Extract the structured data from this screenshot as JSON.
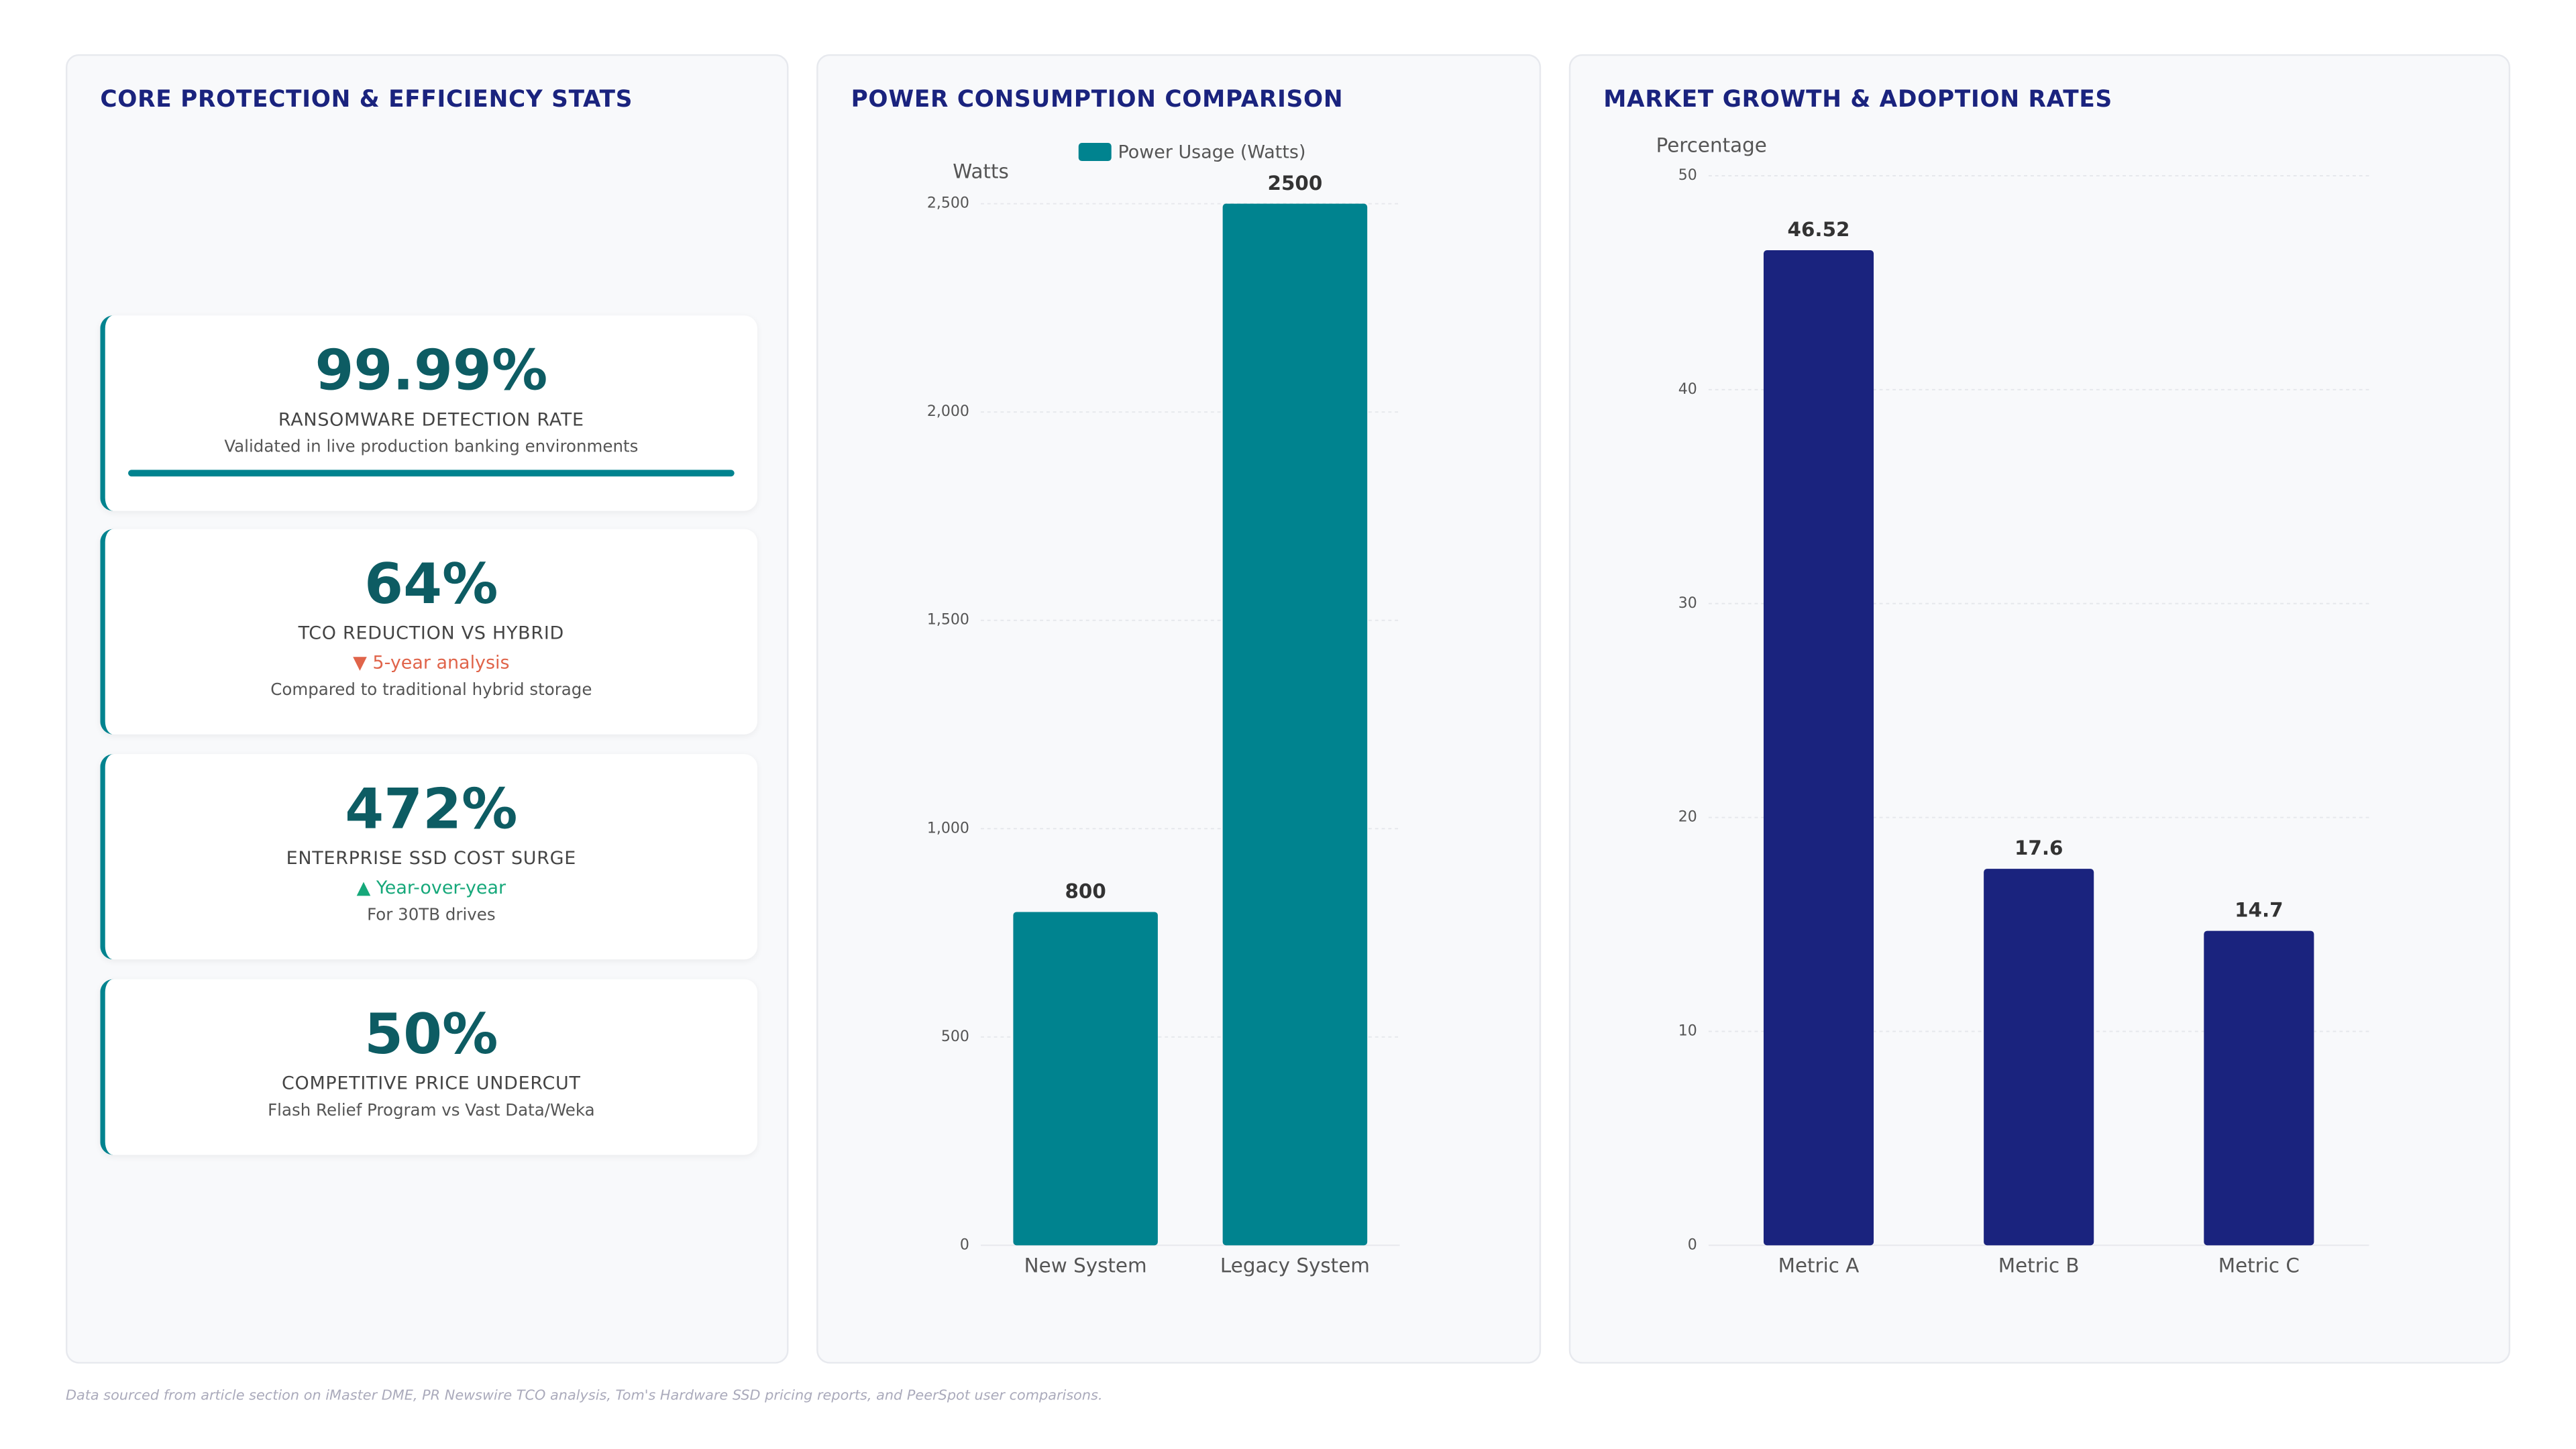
{
  "stats_panel": {
    "title": "CORE PROTECTION & EFFICIENCY STATS",
    "cards": [
      {
        "value": "99.99%",
        "label": "RANSOMWARE DETECTION RATE",
        "note": "Validated in live production banking environments"
      },
      {
        "value": "64%",
        "label": "TCO REDUCTION VS HYBRID",
        "trend": "▼ 5-year analysis",
        "trend_color": "#e0644a",
        "note": "Compared to traditional hybrid storage"
      },
      {
        "value": "472%",
        "label": "ENTERPRISE SSD COST SURGE",
        "trend": "▲ Year-over-year",
        "trend_color": "#16a87a",
        "note": "For 30TB drives"
      },
      {
        "value": "50%",
        "label": "COMPETITIVE PRICE UNDERCUT",
        "note": "Flash Relief Program vs Vast Data/Weka"
      }
    ]
  },
  "chart_data": [
    {
      "type": "bar",
      "title": "POWER CONSUMPTION COMPARISON",
      "y_label": "Watts",
      "categories": [
        "New System",
        "Legacy System"
      ],
      "series": [
        {
          "name": "Power Usage (Watts)",
          "color": "#00838f",
          "values": [
            800,
            2500
          ]
        }
      ],
      "ylim": [
        0,
        2500
      ],
      "yticks": [
        0,
        500,
        {
          "value": 1000,
          "label": "1,000"
        },
        {
          "value": 1500,
          "label": "1,500"
        },
        {
          "value": 2000,
          "label": "2,000"
        },
        {
          "value": 2500,
          "label": "2,500"
        }
      ],
      "grid": true,
      "legend": "top"
    },
    {
      "type": "bar",
      "title": "MARKET GROWTH & ADOPTION RATES",
      "y_label": "Percentage",
      "categories": [
        "Metric A",
        "Metric B",
        "Metric C"
      ],
      "values": [
        46.52,
        17.6,
        14.7
      ],
      "color": "#1a237e",
      "ylim": [
        0,
        50
      ],
      "yticks": [
        0,
        10,
        20,
        30,
        40,
        50
      ],
      "grid": true
    }
  ],
  "footer": "Data sourced from article section on iMaster DME, PR Newswire TCO analysis, Tom's Hardware SSD pricing reports, and PeerSpot user comparisons."
}
